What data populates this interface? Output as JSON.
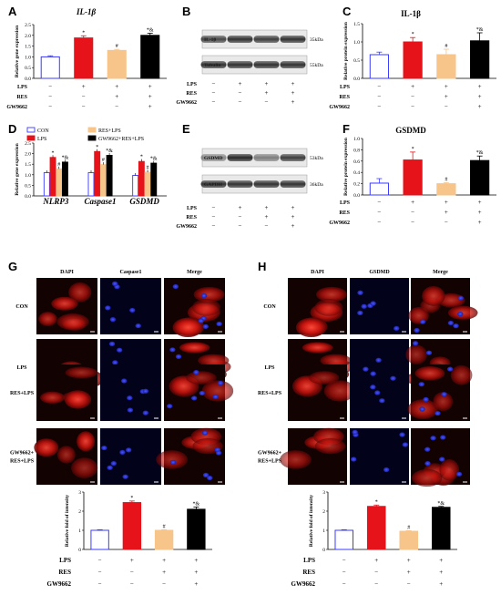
{
  "colors": {
    "con": "#3b3bff",
    "lps": "#e6131b",
    "res": "#f7c48a",
    "gw": "#000000"
  },
  "conditions": [
    "LPS",
    "RES",
    "GW9662"
  ],
  "panels": {
    "A": {
      "letter": "A",
      "title": "IL-1β",
      "ylabel": "Relative gene expression",
      "ticks": [
        "0.0",
        "0.5",
        "1.0",
        "1.5",
        "2.0",
        "2.5"
      ],
      "signs": [
        [
          "−",
          "+",
          "+",
          "+"
        ],
        [
          "−",
          "−",
          "+",
          "+"
        ],
        [
          "−",
          "−",
          "−",
          "+"
        ]
      ],
      "marks": [
        "",
        "*",
        "#",
        "*&"
      ]
    },
    "B": {
      "letter": "B",
      "bands": [
        "IL-1β",
        "Tubulin"
      ],
      "sizes": [
        "35kDa",
        "55kDa"
      ],
      "signs": [
        [
          "−",
          "+",
          "+",
          "+"
        ],
        [
          "−",
          "−",
          "+",
          "+"
        ],
        [
          "−",
          "−",
          "−",
          "+"
        ]
      ]
    },
    "C": {
      "letter": "C",
      "title": "IL-1β",
      "ylabel": "Relative protein expression",
      "ticks": [
        "0.0",
        "0.5",
        "1.0",
        "1.5"
      ],
      "signs": [
        [
          "−",
          "+",
          "+",
          "+"
        ],
        [
          "−",
          "−",
          "+",
          "+"
        ],
        [
          "−",
          "−",
          "−",
          "+"
        ]
      ],
      "marks": [
        "",
        "*",
        "#",
        "*&"
      ]
    },
    "D": {
      "letter": "D",
      "ylabel": "Relative gene expression",
      "ticks": [
        "0.0",
        "0.5",
        "1.0",
        "1.5",
        "2.0",
        "2.5"
      ],
      "groups": [
        "NLRP3",
        "Caspase1",
        "GSDMD"
      ],
      "legend": [
        "CON",
        "LPS",
        "RES+LPS",
        "GW9662+RES+LPS"
      ],
      "marks": [
        "",
        "*",
        "#",
        "*&"
      ]
    },
    "E": {
      "letter": "E",
      "bands": [
        "GSDMD",
        "GAPDH"
      ],
      "sizes": [
        "53kDa",
        "36kDa"
      ],
      "signs": [
        [
          "−",
          "+",
          "+",
          "+"
        ],
        [
          "−",
          "−",
          "+",
          "+"
        ],
        [
          "−",
          "−",
          "−",
          "+"
        ]
      ]
    },
    "F": {
      "letter": "F",
      "title": "GSDMD",
      "ylabel": "Relative protein expression",
      "ticks": [
        "0.0",
        "0.2",
        "0.4",
        "0.6",
        "0.8",
        "1.0"
      ],
      "signs": [
        [
          "−",
          "+",
          "+",
          "+"
        ],
        [
          "−",
          "−",
          "+",
          "+"
        ],
        [
          "−",
          "−",
          "−",
          "+"
        ]
      ],
      "marks": [
        "",
        "*",
        "#",
        "*&"
      ]
    },
    "G": {
      "letter": "G",
      "cols": [
        "DAPI",
        "Caspase1",
        "Merge"
      ],
      "rows": [
        "CON",
        "LPS",
        "RES+LPS",
        "GW9662+\nRES+LPS"
      ],
      "ylabel": "Relative fold of intensity",
      "ticks": [
        "0",
        "1",
        "2",
        "3"
      ],
      "signs": [
        [
          "−",
          "+",
          "+",
          "+"
        ],
        [
          "−",
          "−",
          "+",
          "+"
        ],
        [
          "−",
          "−",
          "−",
          "+"
        ]
      ],
      "marks": [
        "",
        "*",
        "#",
        "*&"
      ]
    },
    "H": {
      "letter": "H",
      "cols": [
        "DAPI",
        "GSDMD",
        "Merge"
      ],
      "rows": [
        "CON",
        "LPS",
        "RES+LPS",
        "GW9662+\nRES+LPS"
      ],
      "ylabel": "Relative fold of intensity",
      "ticks": [
        "0",
        "1",
        "2",
        "3"
      ],
      "signs": [
        [
          "−",
          "+",
          "+",
          "+"
        ],
        [
          "−",
          "−",
          "+",
          "+"
        ],
        [
          "−",
          "−",
          "−",
          "+"
        ]
      ],
      "marks": [
        "",
        "*",
        "#",
        "*&"
      ]
    }
  },
  "chart_data": [
    {
      "panel": "A",
      "type": "bar",
      "title": "IL-1β",
      "ylabel": "Relative gene expression",
      "ylim": [
        0,
        2.5
      ],
      "categories": [
        "CON",
        "LPS",
        "RES+LPS",
        "GW9662+RES+LPS"
      ],
      "values": [
        1.0,
        1.88,
        1.3,
        2.0
      ],
      "errors": [
        0.05,
        0.1,
        0.05,
        0.1
      ]
    },
    {
      "panel": "C",
      "type": "bar",
      "title": "IL-1β",
      "ylabel": "Relative protein expression",
      "ylim": [
        0,
        1.5
      ],
      "categories": [
        "CON",
        "LPS",
        "RES+LPS",
        "GW9662+RES+LPS"
      ],
      "values": [
        0.65,
        1.0,
        0.65,
        1.03
      ],
      "errors": [
        0.07,
        0.12,
        0.15,
        0.22
      ]
    },
    {
      "panel": "D",
      "type": "bar",
      "ylabel": "Relative gene expression",
      "ylim": [
        0,
        2.5
      ],
      "categories": [
        "NLRP3",
        "Caspase1",
        "GSDMD"
      ],
      "series": [
        {
          "name": "CON",
          "values": [
            1.1,
            1.1,
            0.97
          ]
        },
        {
          "name": "LPS",
          "values": [
            1.82,
            2.1,
            1.63
          ]
        },
        {
          "name": "RES+LPS",
          "values": [
            1.28,
            1.48,
            1.12
          ]
        },
        {
          "name": "GW9662+RES+LPS",
          "values": [
            1.6,
            1.92,
            1.55
          ]
        }
      ]
    },
    {
      "panel": "F",
      "type": "bar",
      "title": "GSDMD",
      "ylabel": "Relative protein expression",
      "ylim": [
        0,
        1.0
      ],
      "categories": [
        "CON",
        "LPS",
        "RES+LPS",
        "GW9662+RES+LPS"
      ],
      "values": [
        0.21,
        0.62,
        0.2,
        0.61
      ],
      "errors": [
        0.08,
        0.14,
        0.02,
        0.08
      ]
    },
    {
      "panel": "G",
      "type": "bar",
      "ylabel": "Relative fold of intensity",
      "ylim": [
        0,
        3
      ],
      "categories": [
        "CON",
        "LPS",
        "RES+LPS",
        "GW9662+RES+LPS"
      ],
      "values": [
        1.0,
        2.45,
        1.0,
        2.1
      ],
      "errors": [
        0.03,
        0.08,
        0.03,
        0.12
      ]
    },
    {
      "panel": "H",
      "type": "bar",
      "ylabel": "Relative fold of intensity",
      "ylim": [
        0,
        3
      ],
      "categories": [
        "CON",
        "LPS",
        "RES+LPS",
        "GW9662+RES+LPS"
      ],
      "values": [
        1.0,
        2.25,
        0.95,
        2.2
      ],
      "errors": [
        0.03,
        0.07,
        0.03,
        0.05
      ]
    }
  ]
}
